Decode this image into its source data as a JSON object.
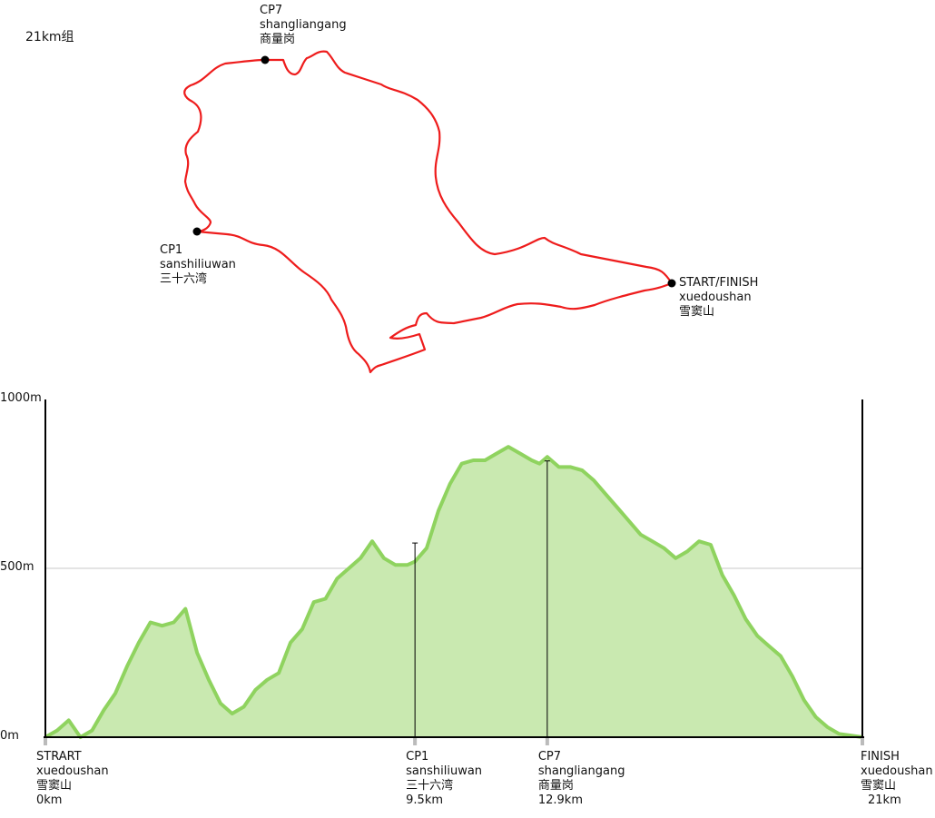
{
  "title": "21km组",
  "map": {
    "route_color": "#ee1c1c",
    "points": [
      {
        "id": "cp7",
        "lines": [
          "CP7",
          "shangliangang",
          "商量岗"
        ]
      },
      {
        "id": "cp1",
        "lines": [
          "CP1",
          "sanshiliuwan",
          "三十六湾"
        ]
      },
      {
        "id": "start",
        "lines": [
          "START/FINISH",
          "xuedoushan",
          "雪窦山"
        ]
      }
    ]
  },
  "chart_data": {
    "type": "area",
    "title": "",
    "xlabel": "",
    "ylabel": "",
    "xlim": [
      0,
      21
    ],
    "ylim": [
      0,
      1000
    ],
    "y_ticks": [
      "1000m",
      "500m",
      "0m"
    ],
    "y_tick_values": [
      1000,
      500,
      0
    ],
    "fill_color": "#c9e9b0",
    "line_color": "#8fd35f",
    "series": [
      {
        "x": [
          0,
          0.3,
          0.6,
          0.9,
          1.2,
          1.5,
          1.8,
          2.1,
          2.4,
          2.7,
          3.0,
          3.3,
          3.6,
          3.9,
          4.2,
          4.5,
          4.8,
          5.1,
          5.4,
          5.7,
          6.0,
          6.3,
          6.6,
          6.9,
          7.2,
          7.5,
          7.8,
          8.1,
          8.4,
          8.7,
          9.0,
          9.3,
          9.5,
          9.8,
          10.1,
          10.4,
          10.7,
          11.0,
          11.3,
          11.6,
          11.9,
          12.2,
          12.5,
          12.7,
          12.9,
          13.2,
          13.5,
          13.8,
          14.1,
          14.4,
          14.7,
          15.0,
          15.3,
          15.6,
          15.9,
          16.2,
          16.5,
          16.8,
          17.1,
          17.4,
          17.7,
          18.0,
          18.3,
          18.6,
          18.9,
          19.2,
          19.5,
          19.8,
          20.1,
          20.4,
          20.7,
          21.0
        ],
        "y": [
          0,
          20,
          50,
          0,
          20,
          80,
          130,
          210,
          280,
          340,
          330,
          340,
          380,
          250,
          170,
          100,
          70,
          90,
          140,
          170,
          190,
          280,
          320,
          400,
          410,
          470,
          500,
          530,
          580,
          530,
          510,
          510,
          520,
          560,
          670,
          750,
          810,
          820,
          820,
          840,
          860,
          840,
          820,
          810,
          830,
          800,
          800,
          790,
          760,
          720,
          680,
          640,
          600,
          580,
          560,
          530,
          550,
          580,
          570,
          480,
          420,
          350,
          300,
          270,
          240,
          180,
          110,
          60,
          30,
          10,
          5,
          0
        ]
      }
    ],
    "x_labels": [
      {
        "x": 0,
        "lines": [
          "STRART",
          "xuedoushan",
          "雪窦山",
          "0km"
        ]
      },
      {
        "x": 9.5,
        "lines": [
          "CP1",
          "sanshiliuwan",
          "三十六湾",
          "9.5km"
        ],
        "marker_y": 575
      },
      {
        "x": 12.9,
        "lines": [
          "CP7",
          "shangliangang",
          "商量岗",
          "12.9km"
        ],
        "marker_y": 818
      },
      {
        "x": 21,
        "lines": [
          "FINISH",
          "xuedoushan",
          "雪窦山",
          "21km"
        ]
      }
    ]
  }
}
